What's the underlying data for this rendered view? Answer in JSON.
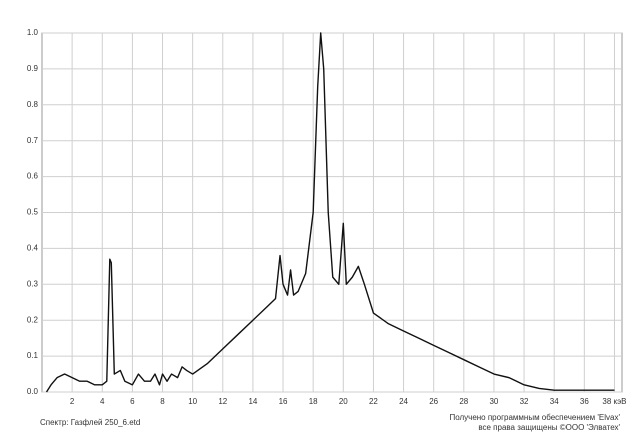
{
  "chart_data": {
    "type": "line",
    "x": [
      0.3,
      0.6,
      1,
      1.5,
      2,
      2.5,
      3,
      3.5,
      4,
      4.3,
      4.5,
      4.6,
      4.8,
      5.2,
      5.5,
      6,
      6.4,
      6.8,
      7.2,
      7.5,
      7.8,
      8,
      8.3,
      8.6,
      9,
      9.3,
      9.6,
      10,
      11,
      12,
      13,
      14,
      15,
      15.5,
      15.8,
      16,
      16.3,
      16.5,
      16.7,
      17,
      17.5,
      18,
      18.3,
      18.5,
      18.7,
      19,
      19.3,
      19.7,
      20,
      20.2,
      20.6,
      21,
      21.4,
      22,
      23,
      24,
      25,
      26,
      27,
      28,
      29,
      30,
      31,
      32,
      33,
      34,
      35,
      36,
      37,
      38
    ],
    "series": [
      {
        "name": "Газфлей 250_6",
        "color": "#111111",
        "values": [
          0,
          0.02,
          0.04,
          0.05,
          0.04,
          0.03,
          0.03,
          0.02,
          0.02,
          0.03,
          0.37,
          0.36,
          0.05,
          0.06,
          0.03,
          0.02,
          0.05,
          0.03,
          0.03,
          0.05,
          0.02,
          0.05,
          0.03,
          0.05,
          0.04,
          0.07,
          0.06,
          0.05,
          0.08,
          0.12,
          0.16,
          0.2,
          0.24,
          0.26,
          0.38,
          0.3,
          0.27,
          0.34,
          0.27,
          0.28,
          0.33,
          0.5,
          0.85,
          1.0,
          0.9,
          0.5,
          0.32,
          0.3,
          0.47,
          0.3,
          0.32,
          0.35,
          0.3,
          0.22,
          0.19,
          0.17,
          0.15,
          0.13,
          0.11,
          0.09,
          0.07,
          0.05,
          0.04,
          0.02,
          0.01,
          0.005,
          0.005,
          0.005,
          0.005,
          0.005
        ]
      }
    ],
    "xlim": [
      0,
      38.5
    ],
    "ylim": [
      0,
      1
    ],
    "xticks": [
      2,
      4,
      6,
      8,
      10,
      12,
      14,
      16,
      18,
      20,
      22,
      24,
      26,
      28,
      30,
      32,
      34,
      36,
      {
        "value": 38,
        "label": "38 кэВ"
      }
    ],
    "yticks": [
      {
        "value": 0,
        "label": "0.0"
      },
      0.1,
      0.2,
      0.3,
      0.4,
      0.5,
      0.6,
      0.7,
      0.8,
      0.9,
      {
        "value": 1,
        "label": "1.0"
      }
    ],
    "grid": true,
    "footer_left": "Спектр: Газфлей 250_6.etd",
    "footer_right": [
      "Получено программным обеспечением 'Elvax'",
      "все права защищены ©ООО 'Элватех'"
    ]
  }
}
